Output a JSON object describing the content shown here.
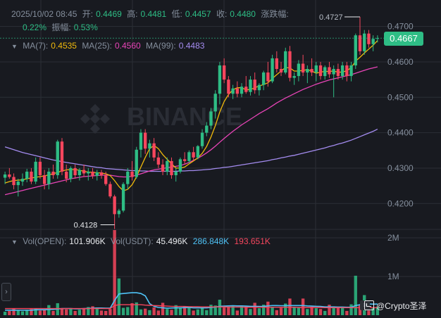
{
  "header": {
    "datetime": "2025/10/02 08:45",
    "open_label": "开:",
    "open": "0.4469",
    "high_label": "高:",
    "high": "0.4481",
    "low_label": "低:",
    "low": "0.4457",
    "close_label": "收:",
    "close": "0.4480",
    "change_label": "涨跌幅:",
    "change": "0.22%",
    "amplitude_label": "振幅:",
    "amplitude": "0.53%"
  },
  "ma": {
    "ma7_label": "MA(7):",
    "ma7": "0.4535",
    "ma25_label": "MA(25):",
    "ma25": "0.4560",
    "ma99_label": "MA(99):",
    "ma99": "0.4483"
  },
  "volume": {
    "vol_label": "Vol(OPEN):",
    "vol": "101.906K",
    "volusdt_label": "Vol(USDT):",
    "volusdt": "45.496K",
    "ma1": "286.848K",
    "ma2": "193.651K"
  },
  "current_price": "0.4667",
  "watermark_brand": "BINANCE",
  "footer": {
    "watermark": "@Crypto圣泽",
    "expand_icon": "›"
  },
  "colors": {
    "up": "#2ebd85",
    "down": "#f6465d",
    "ma7": "#f0b90b",
    "ma25": "#e844b7",
    "ma99": "#a48cf0",
    "vol_ma1": "#4fc3f7",
    "vol_ma2": "#f6465d",
    "grid": "#2b2f36",
    "text": "#848e9c",
    "bg": "#181a20"
  },
  "chart_data": {
    "type": "candlestick",
    "price_axis_ticks": [
      "0.4700",
      "0.4600",
      "0.4500",
      "0.4400",
      "0.4300",
      "0.4200"
    ],
    "price_range": [
      0.4135,
      0.4735
    ],
    "volume_axis_ticks": [
      "2M",
      "1M"
    ],
    "volume_range": [
      0,
      2000000
    ],
    "annotations": [
      {
        "text": "0.4727",
        "candle": 81,
        "price": 0.4727,
        "type": "high"
      },
      {
        "text": "0.4128",
        "candle": 25,
        "price": 0.4128,
        "type": "low"
      }
    ],
    "candles": [
      [
        0.4273,
        0.429,
        0.4255,
        0.4282
      ],
      [
        0.4282,
        0.43,
        0.427,
        0.4275
      ],
      [
        0.4275,
        0.4285,
        0.424,
        0.4252
      ],
      [
        0.4252,
        0.427,
        0.422,
        0.4262
      ],
      [
        0.4262,
        0.4285,
        0.425,
        0.427
      ],
      [
        0.427,
        0.4298,
        0.426,
        0.429
      ],
      [
        0.429,
        0.43,
        0.4255,
        0.4262
      ],
      [
        0.4262,
        0.433,
        0.4255,
        0.4318
      ],
      [
        0.4318,
        0.433,
        0.427,
        0.428
      ],
      [
        0.428,
        0.4295,
        0.424,
        0.4255
      ],
      [
        0.4255,
        0.43,
        0.424,
        0.429
      ],
      [
        0.429,
        0.431,
        0.427,
        0.428
      ],
      [
        0.428,
        0.438,
        0.427,
        0.4375
      ],
      [
        0.4375,
        0.4385,
        0.428,
        0.429
      ],
      [
        0.429,
        0.431,
        0.426,
        0.427
      ],
      [
        0.427,
        0.4305,
        0.426,
        0.43
      ],
      [
        0.43,
        0.431,
        0.427,
        0.428
      ],
      [
        0.428,
        0.43,
        0.4265,
        0.4295
      ],
      [
        0.4295,
        0.431,
        0.4275,
        0.4285
      ],
      [
        0.4285,
        0.43,
        0.4265,
        0.429
      ],
      [
        0.429,
        0.43,
        0.427,
        0.4278
      ],
      [
        0.4278,
        0.4295,
        0.4265,
        0.4288
      ],
      [
        0.4288,
        0.4295,
        0.427,
        0.428
      ],
      [
        0.428,
        0.429,
        0.425,
        0.4255
      ],
      [
        0.4255,
        0.4262,
        0.4215,
        0.422
      ],
      [
        0.422,
        0.4225,
        0.4128,
        0.417
      ],
      [
        0.417,
        0.4185,
        0.416,
        0.418
      ],
      [
        0.418,
        0.426,
        0.4175,
        0.4255
      ],
      [
        0.4255,
        0.43,
        0.424,
        0.429
      ],
      [
        0.429,
        0.432,
        0.4265,
        0.4275
      ],
      [
        0.4275,
        0.436,
        0.427,
        0.4352
      ],
      [
        0.4352,
        0.441,
        0.433,
        0.44
      ],
      [
        0.44,
        0.441,
        0.434,
        0.4355
      ],
      [
        0.4355,
        0.438,
        0.433,
        0.437
      ],
      [
        0.437,
        0.4385,
        0.432,
        0.433
      ],
      [
        0.433,
        0.4345,
        0.43,
        0.431
      ],
      [
        0.431,
        0.4325,
        0.428,
        0.429
      ],
      [
        0.429,
        0.433,
        0.428,
        0.432
      ],
      [
        0.432,
        0.433,
        0.427,
        0.428
      ],
      [
        0.428,
        0.43,
        0.4262,
        0.429
      ],
      [
        0.429,
        0.433,
        0.4285,
        0.4325
      ],
      [
        0.4325,
        0.4345,
        0.431,
        0.432
      ],
      [
        0.432,
        0.435,
        0.4315,
        0.4345
      ],
      [
        0.4345,
        0.436,
        0.432,
        0.433
      ],
      [
        0.433,
        0.4365,
        0.4325,
        0.4362
      ],
      [
        0.4362,
        0.441,
        0.4355,
        0.44
      ],
      [
        0.44,
        0.443,
        0.439,
        0.442
      ],
      [
        0.442,
        0.447,
        0.441,
        0.446
      ],
      [
        0.446,
        0.452,
        0.444,
        0.451
      ],
      [
        0.451,
        0.46,
        0.448,
        0.459
      ],
      [
        0.459,
        0.461,
        0.454,
        0.455
      ],
      [
        0.455,
        0.456,
        0.45,
        0.451
      ],
      [
        0.451,
        0.4535,
        0.4495,
        0.4525
      ],
      [
        0.4525,
        0.4545,
        0.45,
        0.451
      ],
      [
        0.451,
        0.454,
        0.45,
        0.453
      ],
      [
        0.453,
        0.456,
        0.451,
        0.4515
      ],
      [
        0.4515,
        0.456,
        0.4505,
        0.455
      ],
      [
        0.455,
        0.457,
        0.451,
        0.452
      ],
      [
        0.452,
        0.454,
        0.4505,
        0.4535
      ],
      [
        0.4535,
        0.4575,
        0.452,
        0.457
      ],
      [
        0.457,
        0.46,
        0.453,
        0.4545
      ],
      [
        0.4545,
        0.462,
        0.454,
        0.461
      ],
      [
        0.461,
        0.463,
        0.457,
        0.458
      ],
      [
        0.458,
        0.46,
        0.456,
        0.457
      ],
      [
        0.457,
        0.464,
        0.4565,
        0.463
      ],
      [
        0.463,
        0.4645,
        0.4545,
        0.4555
      ],
      [
        0.4555,
        0.457,
        0.4535,
        0.456
      ],
      [
        0.456,
        0.4605,
        0.4545,
        0.4595
      ],
      [
        0.4595,
        0.462,
        0.456,
        0.457
      ],
      [
        0.457,
        0.459,
        0.454,
        0.458
      ],
      [
        0.458,
        0.461,
        0.456,
        0.457
      ],
      [
        0.457,
        0.46,
        0.4545,
        0.459
      ],
      [
        0.459,
        0.46,
        0.455,
        0.456
      ],
      [
        0.456,
        0.459,
        0.455,
        0.4585
      ],
      [
        0.4585,
        0.46,
        0.4555,
        0.4565
      ],
      [
        0.4565,
        0.459,
        0.45,
        0.458
      ],
      [
        0.458,
        0.4595,
        0.455,
        0.456
      ],
      [
        0.456,
        0.46,
        0.455,
        0.459
      ],
      [
        0.459,
        0.46,
        0.4545,
        0.456
      ],
      [
        0.456,
        0.46,
        0.4545,
        0.459
      ],
      [
        0.459,
        0.468,
        0.458,
        0.4675
      ],
      [
        0.4675,
        0.4727,
        0.462,
        0.463
      ],
      [
        0.463,
        0.469,
        0.462,
        0.468
      ],
      [
        0.468,
        0.469,
        0.464,
        0.465
      ],
      [
        0.465,
        0.4675,
        0.463,
        0.4665
      ],
      [
        0.4665,
        0.4675,
        0.4655,
        0.4667
      ]
    ],
    "volumes": [
      90000,
      110000,
      170000,
      120000,
      100000,
      140000,
      160000,
      180000,
      120000,
      150000,
      260000,
      110000,
      310000,
      180000,
      150000,
      160000,
      110000,
      140000,
      170000,
      210000,
      230000,
      200000,
      120000,
      110000,
      160000,
      2200000,
      950000,
      190000,
      210000,
      310000,
      330000,
      150000,
      170000,
      130000,
      200000,
      120000,
      320000,
      160000,
      140000,
      260000,
      180000,
      220000,
      200000,
      120000,
      150000,
      200000,
      130000,
      270000,
      250000,
      400000,
      200000,
      210000,
      240000,
      120000,
      250000,
      230000,
      160000,
      320000,
      180000,
      270000,
      350000,
      210000,
      130000,
      190000,
      300000,
      430000,
      200000,
      190000,
      430000,
      160000,
      220000,
      180000,
      160000,
      110000,
      270000,
      200000,
      190000,
      200000,
      110000,
      280000,
      1020000,
      260000,
      520000,
      120000,
      200000,
      210000
    ],
    "ma7_values": [
      0.4258,
      0.4262,
      0.4265,
      0.4266,
      0.4267,
      0.427,
      0.4272,
      0.4274,
      0.4276,
      0.4278,
      0.4281,
      0.4284,
      0.4288,
      0.4292,
      0.4295,
      0.4296,
      0.4296,
      0.4294,
      0.4291,
      0.4289,
      0.4288,
      0.4287,
      0.4286,
      0.4284,
      0.4279,
      0.4265,
      0.4248,
      0.4236,
      0.424,
      0.4253,
      0.4275,
      0.4303,
      0.433,
      0.4355,
      0.4364,
      0.4355,
      0.4338,
      0.4325,
      0.4312,
      0.43,
      0.43,
      0.4303,
      0.4312,
      0.432,
      0.4329,
      0.4342,
      0.4361,
      0.4388,
      0.442,
      0.4458,
      0.4488,
      0.4508,
      0.4521,
      0.4527,
      0.4527,
      0.4521,
      0.4522,
      0.4527,
      0.4532,
      0.4536,
      0.4541,
      0.4553,
      0.4564,
      0.4574,
      0.4584,
      0.4583,
      0.4574,
      0.4574,
      0.4576,
      0.4578,
      0.4574,
      0.4568,
      0.4571,
      0.4573,
      0.4573,
      0.4574,
      0.4571,
      0.4571,
      0.4575,
      0.4584,
      0.4602,
      0.4613,
      0.4625,
      0.4636,
      0.4647,
      0.466
    ],
    "ma25_values": [
      0.4225,
      0.4228,
      0.4231,
      0.4234,
      0.4237,
      0.424,
      0.4243,
      0.4246,
      0.4249,
      0.4252,
      0.4255,
      0.4258,
      0.4261,
      0.4264,
      0.4267,
      0.427,
      0.4272,
      0.4274,
      0.4276,
      0.4277,
      0.4278,
      0.4279,
      0.428,
      0.428,
      0.428,
      0.4278,
      0.4276,
      0.4275,
      0.4275,
      0.4277,
      0.428,
      0.4284,
      0.4288,
      0.4292,
      0.4295,
      0.4297,
      0.4299,
      0.4301,
      0.4303,
      0.4305,
      0.4307,
      0.4311,
      0.4316,
      0.4322,
      0.4328,
      0.4335,
      0.4343,
      0.4352,
      0.4362,
      0.4373,
      0.4384,
      0.4394,
      0.4404,
      0.4413,
      0.4422,
      0.443,
      0.4438,
      0.4446,
      0.4454,
      0.4461,
      0.4468,
      0.4476,
      0.4484,
      0.4491,
      0.4498,
      0.4504,
      0.451,
      0.4516,
      0.4522,
      0.4527,
      0.4532,
      0.4537,
      0.4541,
      0.4545,
      0.4549,
      0.4552,
      0.4555,
      0.4558,
      0.4561,
      0.4564,
      0.4568,
      0.4572,
      0.4576,
      0.458,
      0.4583,
      0.4586
    ],
    "ma99_values": [
      0.436,
      0.4356,
      0.4352,
      0.4348,
      0.4344,
      0.4341,
      0.4338,
      0.4335,
      0.4332,
      0.4329,
      0.4326,
      0.4323,
      0.4321,
      0.4318,
      0.4316,
      0.4314,
      0.4312,
      0.431,
      0.4308,
      0.4306,
      0.4304,
      0.4302,
      0.4301,
      0.4299,
      0.4298,
      0.4297,
      0.4296,
      0.4295,
      0.4294,
      0.4293,
      0.4293,
      0.4292,
      0.4292,
      0.4291,
      0.4291,
      0.4291,
      0.4291,
      0.4291,
      0.4291,
      0.4291,
      0.4292,
      0.4292,
      0.4293,
      0.4293,
      0.4294,
      0.4295,
      0.4296,
      0.4297,
      0.4299,
      0.43,
      0.4302,
      0.4303,
      0.4305,
      0.4307,
      0.4309,
      0.4311,
      0.4313,
      0.4315,
      0.4317,
      0.4319,
      0.4321,
      0.4324,
      0.4326,
      0.4329,
      0.4331,
      0.4334,
      0.4336,
      0.4339,
      0.4342,
      0.4345,
      0.4348,
      0.4351,
      0.4354,
      0.4357,
      0.4361,
      0.4364,
      0.4368,
      0.4371,
      0.4375,
      0.4379,
      0.4384,
      0.4389,
      0.4394,
      0.4399,
      0.4404,
      0.441
    ],
    "vol_ma1_values": [
      130000,
      130000,
      130000,
      128000,
      127000,
      127000,
      130000,
      140000,
      140000,
      140000,
      150000,
      150000,
      160000,
      170000,
      170000,
      170000,
      165000,
      165000,
      170000,
      175000,
      180000,
      185000,
      185000,
      180000,
      180000,
      380000,
      550000,
      560000,
      570000,
      580000,
      580000,
      560000,
      500000,
      300000,
      230000,
      200000,
      190000,
      180000,
      185000,
      190000,
      190000,
      195000,
      200000,
      190000,
      190000,
      190000,
      190000,
      200000,
      210000,
      230000,
      235000,
      240000,
      245000,
      240000,
      240000,
      235000,
      230000,
      230000,
      225000,
      230000,
      240000,
      250000,
      250000,
      245000,
      245000,
      250000,
      250000,
      250000,
      250000,
      240000,
      235000,
      230000,
      225000,
      215000,
      215000,
      215000,
      210000,
      210000,
      205000,
      205000,
      250000,
      270000,
      290000,
      290000,
      285000,
      287000
    ],
    "vol_ma2_values": [
      170000,
      170000,
      170000,
      170000,
      170000,
      170000,
      170000,
      170000,
      170000,
      170000,
      170000,
      170000,
      170000,
      170000,
      170000,
      170000,
      170000,
      170000,
      170000,
      170000,
      170000,
      170000,
      170000,
      170000,
      170000,
      250000,
      270000,
      270000,
      270000,
      270000,
      270000,
      270000,
      260000,
      255000,
      250000,
      245000,
      240000,
      235000,
      230000,
      225000,
      225000,
      225000,
      220000,
      220000,
      220000,
      215000,
      215000,
      215000,
      215000,
      215000,
      215000,
      210000,
      210000,
      210000,
      210000,
      205000,
      205000,
      205000,
      205000,
      205000,
      205000,
      205000,
      205000,
      205000,
      205000,
      205000,
      205000,
      200000,
      200000,
      200000,
      200000,
      200000,
      200000,
      195000,
      195000,
      195000,
      195000,
      195000,
      195000,
      195000,
      195000,
      195000,
      195000,
      194000,
      194000,
      194000
    ]
  }
}
